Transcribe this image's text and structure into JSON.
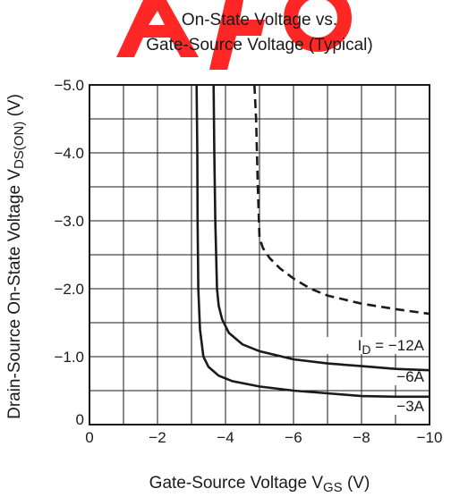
{
  "watermark_color": "#ff0000",
  "chart_data": {
    "type": "line",
    "title": [
      "On-State Voltage vs.",
      "Gate-Source Voltage  (Typical)"
    ],
    "xlabel": {
      "main": "Gate-Source Voltage  V",
      "sub": "GS",
      "unit": " (V)"
    },
    "ylabel": {
      "main": "Drain-Source On-State Voltage  V",
      "sub": "DS(ON)",
      "unit": " (V)"
    },
    "xlim": [
      0,
      -10
    ],
    "ylim": [
      0,
      -5.0
    ],
    "x_ticks": [
      {
        "value": 0,
        "label": "0"
      },
      {
        "value": -2,
        "label": "−2"
      },
      {
        "value": -4,
        "label": "−4"
      },
      {
        "value": -6,
        "label": "−6"
      },
      {
        "value": -8,
        "label": "−8"
      },
      {
        "value": -10,
        "label": "−10"
      }
    ],
    "y_ticks": [
      {
        "value": 0,
        "label": "0"
      },
      {
        "value": -1.0,
        "label": "−1.0"
      },
      {
        "value": -2.0,
        "label": "−2.0"
      },
      {
        "value": -3.0,
        "label": "−3.0"
      },
      {
        "value": -4.0,
        "label": "−4.0"
      },
      {
        "value": -5.0,
        "label": "−5.0"
      }
    ],
    "grid": {
      "x_step": -1,
      "y_step": -0.5
    },
    "series": [
      {
        "name": "−3A",
        "label_parts": [
          "−3A"
        ],
        "dash": false,
        "x": [
          -3.15,
          -3.17,
          -3.18,
          -3.2,
          -3.25,
          -3.35,
          -3.5,
          -3.8,
          -4.2,
          -5.0,
          -6.0,
          -7.0,
          -8.0,
          -9.0,
          -10.0
        ],
        "y": [
          -5.0,
          -4.0,
          -3.0,
          -2.0,
          -1.4,
          -1.0,
          -0.85,
          -0.72,
          -0.64,
          -0.56,
          -0.5,
          -0.46,
          -0.42,
          -0.41,
          -0.41
        ]
      },
      {
        "name": "−6A",
        "label_parts": [
          "−6A"
        ],
        "dash": false,
        "x": [
          -3.65,
          -3.67,
          -3.7,
          -3.75,
          -3.8,
          -3.9,
          -4.1,
          -4.5,
          -5.0,
          -6.0,
          -7.0,
          -8.0,
          -9.0,
          -10.0
        ],
        "y": [
          -5.0,
          -4.0,
          -3.0,
          -2.0,
          -1.75,
          -1.55,
          -1.35,
          -1.18,
          -1.08,
          -0.96,
          -0.9,
          -0.86,
          -0.82,
          -0.8
        ]
      },
      {
        "name": "I_D = −12A",
        "label_parts": [
          "I",
          "D",
          " = −12A"
        ],
        "dash": true,
        "x": [
          -4.85,
          -4.9,
          -4.95,
          -5.0,
          -5.1,
          -5.3,
          -5.6,
          -6.0,
          -6.5,
          -7.0,
          -8.0,
          -9.0,
          -10.0
        ],
        "y": [
          -5.0,
          -4.5,
          -3.5,
          -2.75,
          -2.6,
          -2.45,
          -2.3,
          -2.15,
          -2.0,
          -1.9,
          -1.78,
          -1.7,
          -1.63
        ]
      }
    ]
  }
}
